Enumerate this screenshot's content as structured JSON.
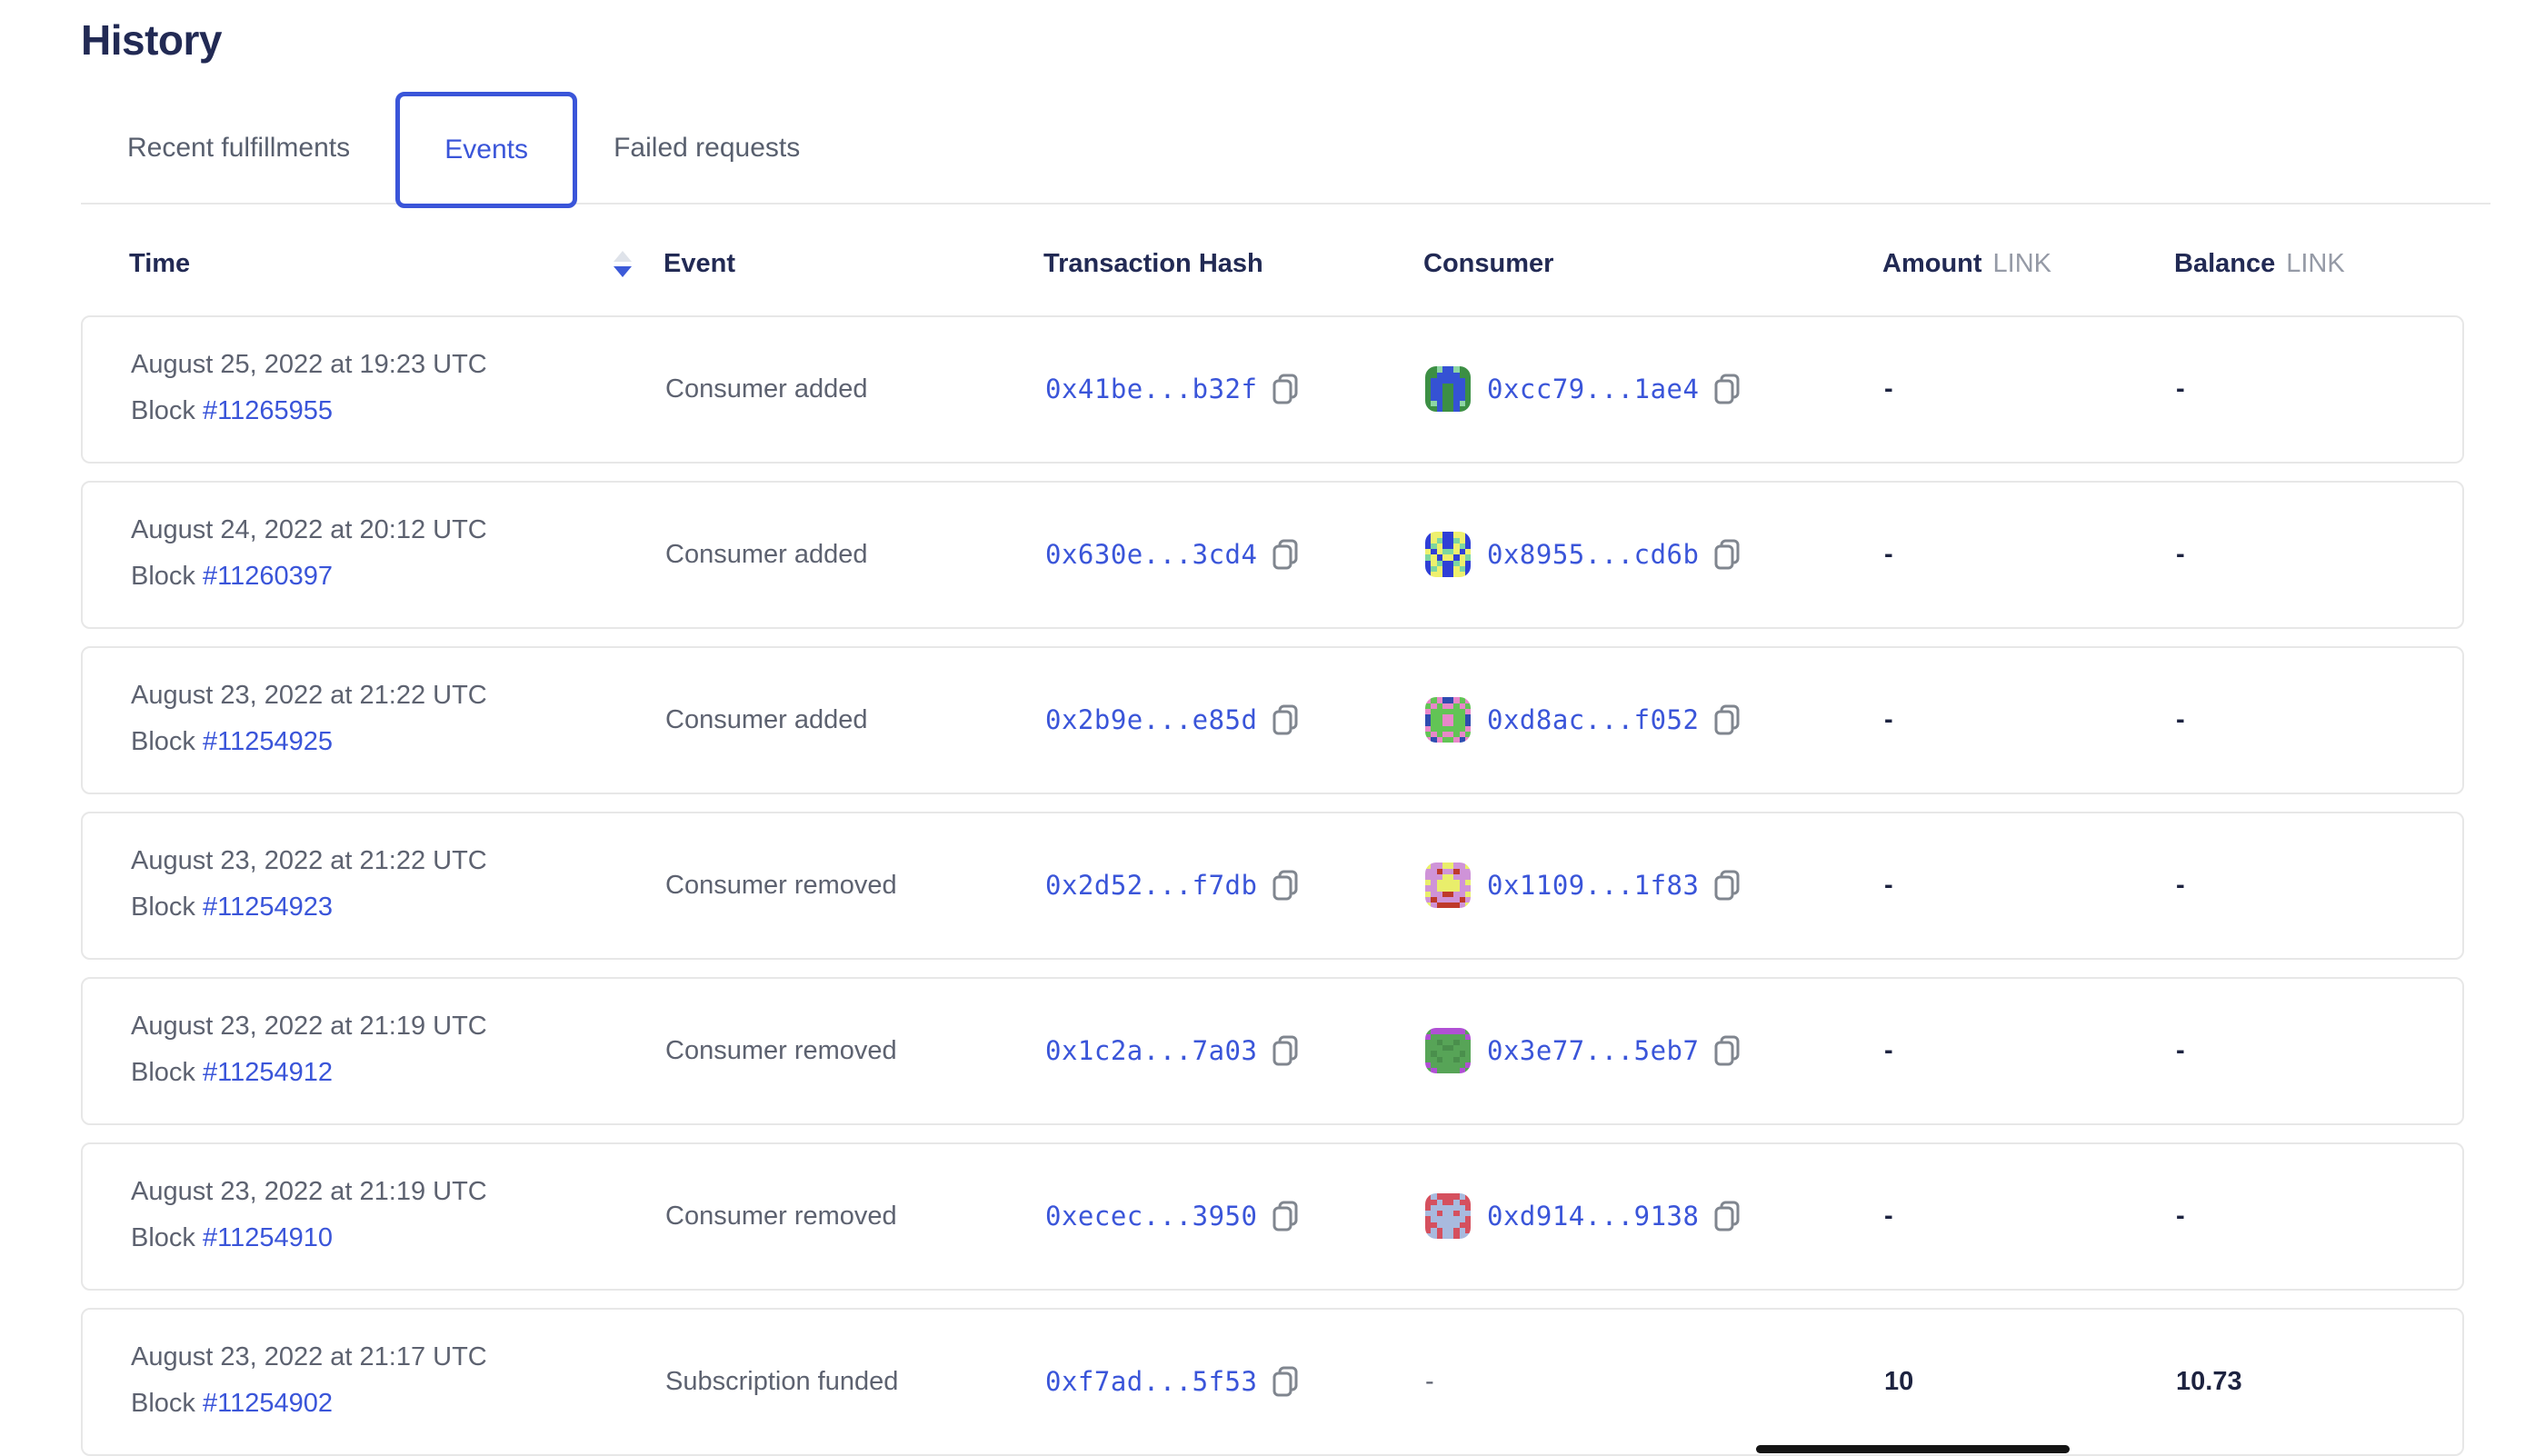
{
  "page": {
    "title": "History"
  },
  "tabs": [
    {
      "label": "Recent fulfillments",
      "active": false
    },
    {
      "label": "Events",
      "active": true
    },
    {
      "label": "Failed requests",
      "active": false
    }
  ],
  "table": {
    "block_label": "Block",
    "empty_value": "-",
    "columns": {
      "time": "Time",
      "event": "Event",
      "tx_hash": "Transaction Hash",
      "consumer": "Consumer",
      "amount": "Amount",
      "balance": "Balance",
      "link_unit": "LINK"
    },
    "sort": {
      "column": "Time",
      "direction": "descending"
    },
    "rows": [
      {
        "time": "August 25, 2022 at 19:23 UTC",
        "block_number": "#11265955",
        "event": "Consumer added",
        "tx_hash": "0x41be...b32f",
        "consumer": "0xcc79...1ae4",
        "identicon": 0,
        "amount": "-",
        "balance": "-"
      },
      {
        "time": "August 24, 2022 at 20:12 UTC",
        "block_number": "#11260397",
        "event": "Consumer added",
        "tx_hash": "0x630e...3cd4",
        "consumer": "0x8955...cd6b",
        "identicon": 1,
        "amount": "-",
        "balance": "-"
      },
      {
        "time": "August 23, 2022 at 21:22 UTC",
        "block_number": "#11254925",
        "event": "Consumer added",
        "tx_hash": "0x2b9e...e85d",
        "consumer": "0xd8ac...f052",
        "identicon": 2,
        "amount": "-",
        "balance": "-"
      },
      {
        "time": "August 23, 2022 at 21:22 UTC",
        "block_number": "#11254923",
        "event": "Consumer removed",
        "tx_hash": "0x2d52...f7db",
        "consumer": "0x1109...1f83",
        "identicon": 3,
        "amount": "-",
        "balance": "-"
      },
      {
        "time": "August 23, 2022 at 21:19 UTC",
        "block_number": "#11254912",
        "event": "Consumer removed",
        "tx_hash": "0x1c2a...7a03",
        "consumer": "0x3e77...5eb7",
        "identicon": 4,
        "amount": "-",
        "balance": "-"
      },
      {
        "time": "August 23, 2022 at 21:19 UTC",
        "block_number": "#11254910",
        "event": "Consumer removed",
        "tx_hash": "0xecec...3950",
        "consumer": "0xd914...9138",
        "identicon": 5,
        "amount": "-",
        "balance": "-"
      },
      {
        "time": "August 23, 2022 at 21:17 UTC",
        "block_number": "#11254902",
        "event": "Subscription funded",
        "tx_hash": "0xf7ad...5f53",
        "consumer": null,
        "identicon": null,
        "amount": "10",
        "balance": "10.73"
      }
    ]
  },
  "identicons": [
    {
      "palette": {
        "G": "#3c8f44",
        "B": "#3552d4",
        "L": "#8ed6a4"
      },
      "rows": [
        "GGLBBLGG",
        "GGBBBBGG",
        "GBBBBBBG",
        "GBBGGBBG",
        "GBBGGBBG",
        "GBBGGBBG",
        "GLBGGBLG",
        "GGBGGBGG"
      ]
    },
    {
      "palette": {
        "B": "#2f3fd6",
        "Y": "#eef06d",
        "T": "#7dd6a0"
      },
      "rows": [
        "BYYBBYYB",
        "BYTBBTYB",
        "BTYBBYTB",
        "YBYTTYBY",
        "TYBYYBYT",
        "BYTBBTYB",
        "BTYBBYTB",
        "BYYBBYYB"
      ]
    },
    {
      "palette": {
        "G": "#62c455",
        "P": "#e887c9",
        "N": "#2e4cb0"
      },
      "rows": [
        "PGPNNPGP",
        "GPGPPGPG",
        "PGGGGGGP",
        "NGGPPGGN",
        "NGGPPGGN",
        "PGGGGGGP",
        "GPGPPGPG",
        "PNPGGPNP"
      ]
    },
    {
      "palette": {
        "V": "#cf93d8",
        "Y": "#e9ee6b",
        "R": "#bf3a2b"
      },
      "rows": [
        "YVVYYVVY",
        "VVRVVRVV",
        "VVVYYVVV",
        "YVYYYYVY",
        "VVYYYYVV",
        "YVVRRVVY",
        "VRVVVVRV",
        "YVRRRRVY"
      ]
    },
    {
      "palette": {
        "G": "#57a457",
        "P": "#b050d4",
        "D": "#4a8f4c"
      },
      "rows": [
        "GPPPPPPG",
        "PGGGGGGP",
        "GGDGGDGG",
        "GGGDDGGG",
        "GDGGGGDG",
        "GGDGGDGG",
        "PGGGGGGP",
        "GPGGGGPG"
      ]
    },
    {
      "palette": {
        "R": "#d5505e",
        "L": "#a8bade"
      },
      "rows": [
        "RLRRRRLR",
        "RRLRRLRR",
        "RLLLLLLR",
        "LLRLLRLL",
        "RLLLLLLR",
        "RRLLLLRR",
        "RLRLLRLR",
        "LLRLLRLL"
      ]
    }
  ],
  "colors": {
    "accent_blue": "#3a55d9",
    "heading_navy": "#222a54",
    "body_gray": "#5d6270",
    "unit_gray": "#959aa6",
    "card_border": "#e7e7e7"
  }
}
